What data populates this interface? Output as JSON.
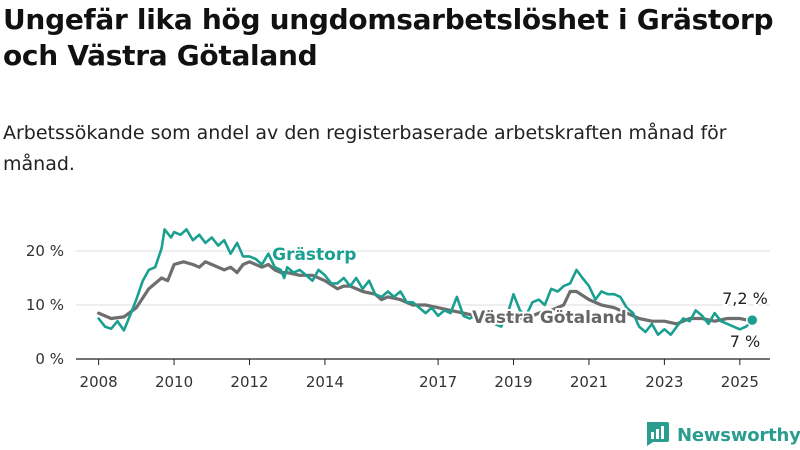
{
  "title": "Ungefär lika hög ungdomsarbetslöshet i Grästorp och Västra Götaland",
  "subtitle": "Arbetssökande som andel av den registerbaserade arbetskraften månad för månad.",
  "brand": {
    "name": "Newsworthy",
    "logo_icon": "newsworthy-logo-icon",
    "color": "#2a9d8f"
  },
  "chart_data": {
    "type": "line",
    "ylim": [
      0,
      25
    ],
    "xlim": [
      2007.4,
      2025.8
    ],
    "y_ticks": [
      0,
      10,
      20
    ],
    "y_tick_labels": [
      "0 %",
      "10 %",
      "20 %"
    ],
    "x_ticks": [
      2008,
      2010,
      2012,
      2014,
      2017,
      2019,
      2021,
      2023,
      2025
    ],
    "x_tick_labels": [
      "2008",
      "2010",
      "2012",
      "2014",
      "2017",
      "2019",
      "2021",
      "2023",
      "2025"
    ],
    "grid": "horizontal",
    "legend": "inline labels",
    "series": [
      {
        "name": "Grästorp",
        "color": "#1a9f91",
        "end_label": "7,2 %",
        "points": [
          [
            2008.0,
            7.5
          ],
          [
            2008.17,
            6.0
          ],
          [
            2008.33,
            5.6
          ],
          [
            2008.5,
            7.0
          ],
          [
            2008.67,
            5.3
          ],
          [
            2008.83,
            8.0
          ],
          [
            2009.0,
            11.0
          ],
          [
            2009.17,
            14.5
          ],
          [
            2009.33,
            16.5
          ],
          [
            2009.5,
            17.0
          ],
          [
            2009.67,
            20.5
          ],
          [
            2009.75,
            24.0
          ],
          [
            2009.92,
            22.5
          ],
          [
            2010.0,
            23.5
          ],
          [
            2010.17,
            23.0
          ],
          [
            2010.33,
            24.0
          ],
          [
            2010.5,
            22.0
          ],
          [
            2010.67,
            23.0
          ],
          [
            2010.83,
            21.5
          ],
          [
            2011.0,
            22.5
          ],
          [
            2011.17,
            21.0
          ],
          [
            2011.33,
            22.0
          ],
          [
            2011.5,
            19.5
          ],
          [
            2011.67,
            21.5
          ],
          [
            2011.83,
            19.0
          ],
          [
            2012.0,
            19.0
          ],
          [
            2012.17,
            18.5
          ],
          [
            2012.33,
            17.5
          ],
          [
            2012.5,
            19.5
          ],
          [
            2012.67,
            17.0
          ],
          [
            2012.83,
            16.5
          ],
          [
            2012.92,
            15.0
          ],
          [
            2013.0,
            17.0
          ],
          [
            2013.17,
            16.0
          ],
          [
            2013.33,
            16.5
          ],
          [
            2013.5,
            15.5
          ],
          [
            2013.67,
            14.5
          ],
          [
            2013.83,
            16.5
          ],
          [
            2014.0,
            15.5
          ],
          [
            2014.17,
            14.0
          ],
          [
            2014.33,
            14.0
          ],
          [
            2014.5,
            15.0
          ],
          [
            2014.67,
            13.5
          ],
          [
            2014.83,
            15.0
          ],
          [
            2015.0,
            13.0
          ],
          [
            2015.17,
            14.5
          ],
          [
            2015.33,
            12.0
          ],
          [
            2015.5,
            11.5
          ],
          [
            2015.67,
            12.5
          ],
          [
            2015.83,
            11.5
          ],
          [
            2016.0,
            12.5
          ],
          [
            2016.17,
            10.5
          ],
          [
            2016.33,
            10.5
          ],
          [
            2016.5,
            9.5
          ],
          [
            2016.67,
            8.5
          ],
          [
            2016.83,
            9.5
          ],
          [
            2017.0,
            8.0
          ],
          [
            2017.17,
            9.0
          ],
          [
            2017.33,
            8.5
          ],
          [
            2017.5,
            11.5
          ],
          [
            2017.67,
            8.0
          ],
          [
            2017.83,
            7.5
          ],
          [
            2018.0,
            8.0
          ],
          [
            2018.17,
            7.0
          ],
          [
            2018.33,
            7.5
          ],
          [
            2018.5,
            6.5
          ],
          [
            2018.67,
            6.0
          ],
          [
            2018.83,
            8.0
          ],
          [
            2019.0,
            12.0
          ],
          [
            2019.17,
            9.0
          ],
          [
            2019.33,
            8.0
          ],
          [
            2019.5,
            10.5
          ],
          [
            2019.67,
            11.0
          ],
          [
            2019.83,
            10.0
          ],
          [
            2020.0,
            13.0
          ],
          [
            2020.17,
            12.5
          ],
          [
            2020.33,
            13.5
          ],
          [
            2020.5,
            14.0
          ],
          [
            2020.67,
            16.5
          ],
          [
            2020.83,
            15.0
          ],
          [
            2021.0,
            13.5
          ],
          [
            2021.17,
            11.0
          ],
          [
            2021.33,
            12.5
          ],
          [
            2021.5,
            12.0
          ],
          [
            2021.67,
            12.0
          ],
          [
            2021.83,
            11.5
          ],
          [
            2022.0,
            9.5
          ],
          [
            2022.17,
            8.5
          ],
          [
            2022.33,
            6.0
          ],
          [
            2022.5,
            5.0
          ],
          [
            2022.67,
            6.5
          ],
          [
            2022.83,
            4.5
          ],
          [
            2023.0,
            5.5
          ],
          [
            2023.17,
            4.5
          ],
          [
            2023.33,
            6.0
          ],
          [
            2023.5,
            7.5
          ],
          [
            2023.67,
            7.0
          ],
          [
            2023.83,
            9.0
          ],
          [
            2024.0,
            8.0
          ],
          [
            2024.17,
            6.5
          ],
          [
            2024.33,
            8.5
          ],
          [
            2024.5,
            7.0
          ],
          [
            2024.67,
            6.5
          ],
          [
            2024.83,
            6.0
          ],
          [
            2025.0,
            5.5
          ],
          [
            2025.17,
            6.0
          ],
          [
            2025.33,
            7.2
          ]
        ]
      },
      {
        "name": "Västra Götaland",
        "color": "#6e6e6e",
        "end_label": "7 %",
        "points": [
          [
            2008.0,
            8.5
          ],
          [
            2008.33,
            7.5
          ],
          [
            2008.67,
            7.8
          ],
          [
            2009.0,
            9.5
          ],
          [
            2009.33,
            13.0
          ],
          [
            2009.67,
            15.0
          ],
          [
            2009.83,
            14.5
          ],
          [
            2010.0,
            17.5
          ],
          [
            2010.25,
            18.0
          ],
          [
            2010.5,
            17.5
          ],
          [
            2010.67,
            17.0
          ],
          [
            2010.83,
            18.0
          ],
          [
            2011.0,
            17.5
          ],
          [
            2011.33,
            16.5
          ],
          [
            2011.5,
            17.0
          ],
          [
            2011.67,
            16.0
          ],
          [
            2011.83,
            17.5
          ],
          [
            2012.0,
            18.0
          ],
          [
            2012.33,
            17.0
          ],
          [
            2012.5,
            17.5
          ],
          [
            2012.67,
            16.5
          ],
          [
            2012.83,
            16.0
          ],
          [
            2013.0,
            16.0
          ],
          [
            2013.33,
            15.5
          ],
          [
            2013.5,
            15.5
          ],
          [
            2013.67,
            15.5
          ],
          [
            2014.0,
            14.5
          ],
          [
            2014.33,
            13.0
          ],
          [
            2014.5,
            13.5
          ],
          [
            2014.67,
            13.5
          ],
          [
            2015.0,
            12.5
          ],
          [
            2015.33,
            12.0
          ],
          [
            2015.5,
            11.0
          ],
          [
            2015.67,
            11.5
          ],
          [
            2016.0,
            11.0
          ],
          [
            2016.33,
            10.0
          ],
          [
            2016.67,
            10.0
          ],
          [
            2017.0,
            9.5
          ],
          [
            2017.33,
            9.0
          ],
          [
            2017.67,
            8.5
          ],
          [
            2018.0,
            8.0
          ],
          [
            2018.33,
            7.5
          ],
          [
            2018.67,
            7.5
          ],
          [
            2019.0,
            7.5
          ],
          [
            2019.33,
            7.5
          ],
          [
            2019.67,
            8.5
          ],
          [
            2020.0,
            9.0
          ],
          [
            2020.33,
            10.0
          ],
          [
            2020.5,
            12.5
          ],
          [
            2020.67,
            12.5
          ],
          [
            2021.0,
            11.0
          ],
          [
            2021.33,
            10.0
          ],
          [
            2021.67,
            9.5
          ],
          [
            2022.0,
            8.5
          ],
          [
            2022.33,
            7.5
          ],
          [
            2022.67,
            7.0
          ],
          [
            2023.0,
            7.0
          ],
          [
            2023.33,
            6.5
          ],
          [
            2023.67,
            7.5
          ],
          [
            2024.0,
            7.5
          ],
          [
            2024.33,
            7.0
          ],
          [
            2024.67,
            7.5
          ],
          [
            2025.0,
            7.5
          ],
          [
            2025.33,
            7.0
          ]
        ]
      }
    ]
  }
}
